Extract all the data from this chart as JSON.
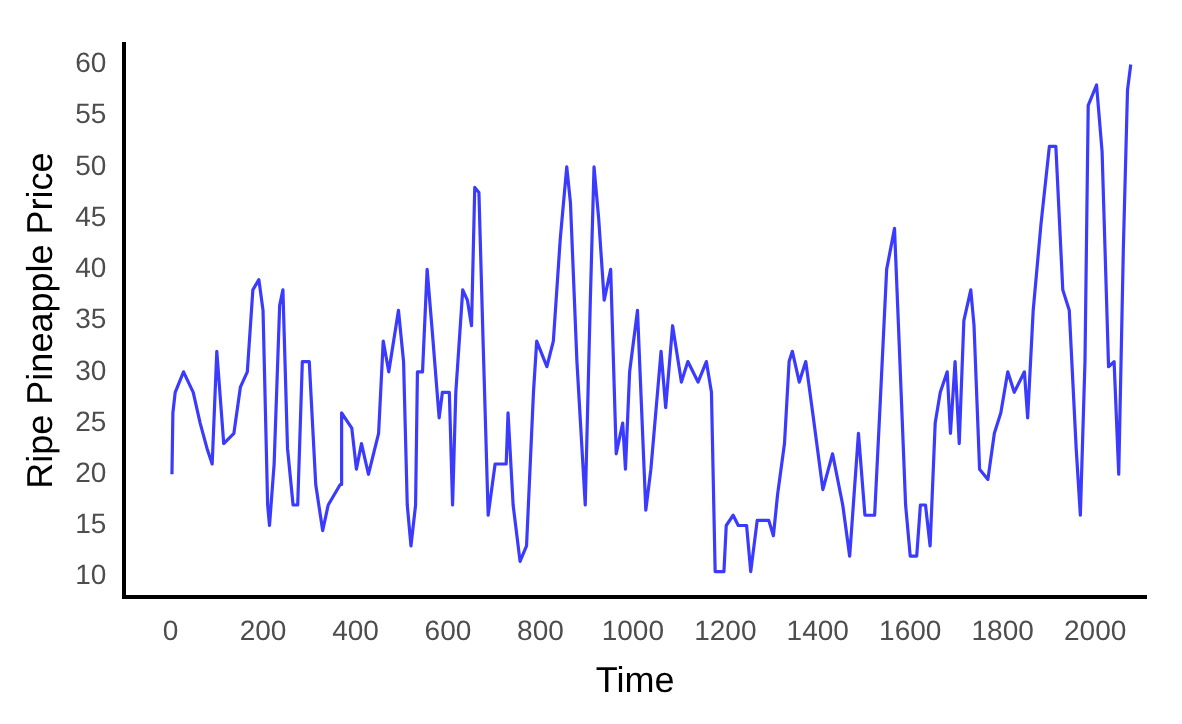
{
  "chart_data": {
    "type": "line",
    "xlabel": "Time",
    "ylabel": "Ripe Pineapple Price",
    "xlim": [
      -100,
      2110
    ],
    "ylim": [
      8,
      62
    ],
    "xticks": [
      0,
      200,
      400,
      600,
      800,
      1000,
      1200,
      1400,
      1600,
      1800,
      2000
    ],
    "yticks": [
      10,
      15,
      20,
      25,
      30,
      35,
      40,
      45,
      50,
      55,
      60
    ],
    "grid": false,
    "legend": false,
    "marker": "none",
    "line_style": "solid",
    "series": [
      {
        "color": "#3b3bff",
        "x": [
          3,
          5,
          10,
          28,
          49,
          64,
          79,
          90,
          100,
          115,
          137,
          151,
          166,
          178,
          191,
          200,
          210,
          214,
          224,
          236,
          243,
          253,
          265,
          275,
          285,
          300,
          314,
          329,
          341,
          367,
          370,
          392,
          402,
          413,
          428,
          450,
          460,
          472,
          493,
          504,
          512,
          520,
          530,
          534,
          545,
          555,
          566,
          581,
          588,
          603,
          610,
          617,
          632,
          642,
          651,
          658,
          667,
          676,
          687,
          702,
          726,
          730,
          741,
          756,
          770,
          785,
          792,
          814,
          828,
          843,
          857,
          865,
          879,
          897,
          908,
          916,
          926,
          938,
          952,
          964,
          978,
          984,
          993,
          1010,
          1028,
          1039,
          1061,
          1071,
          1086,
          1105,
          1119,
          1141,
          1159,
          1170,
          1178,
          1197,
          1202,
          1217,
          1228,
          1246,
          1255,
          1269,
          1294,
          1304,
          1313,
          1328,
          1338,
          1345,
          1360,
          1374,
          1389,
          1411,
          1432,
          1454,
          1469,
          1488,
          1502,
          1523,
          1534,
          1549,
          1566,
          1575,
          1590,
          1600,
          1614,
          1622,
          1633,
          1643,
          1654,
          1665,
          1680,
          1687,
          1697,
          1706,
          1716,
          1731,
          1738,
          1750,
          1768,
          1782,
          1796,
          1811,
          1825,
          1847,
          1854,
          1866,
          1883,
          1901,
          1915,
          1930,
          1944,
          1959,
          1968,
          1978,
          1985,
          2003,
          2015,
          2029,
          2041,
          2051,
          2061,
          2070,
          2077
        ],
        "values": [
          20,
          26,
          28,
          30,
          28,
          25,
          22.5,
          21,
          32,
          23,
          24,
          28.5,
          30,
          38,
          39,
          36,
          17,
          15,
          21,
          36.5,
          38,
          22.5,
          17,
          17,
          31,
          31,
          19,
          14.5,
          17,
          19,
          26,
          24.5,
          20.5,
          23,
          20,
          24,
          33,
          30,
          36,
          31,
          17,
          13,
          17,
          30,
          30,
          40,
          34,
          25.5,
          28,
          28,
          17,
          28,
          38,
          37,
          34.5,
          48,
          47.5,
          33,
          16,
          21,
          21,
          26,
          17,
          11.5,
          13,
          28,
          33,
          30.5,
          33,
          43,
          50,
          46.5,
          31,
          17,
          37,
          50,
          45,
          37,
          40,
          22,
          25,
          20.5,
          30,
          36,
          16.5,
          20.5,
          32,
          26.5,
          34.5,
          29,
          31,
          29,
          31,
          28,
          10.5,
          10.5,
          15,
          16,
          15,
          15,
          10.5,
          15.5,
          15.5,
          14,
          18,
          23,
          31,
          32,
          29,
          31,
          26,
          18.5,
          22,
          17,
          12,
          24,
          16,
          16,
          26,
          40,
          44,
          34,
          17,
          12,
          12,
          17,
          17,
          13,
          25,
          28,
          30,
          24,
          31,
          23,
          35,
          38,
          34.5,
          20.5,
          19.5,
          24,
          26,
          30,
          28,
          30,
          25.5,
          36,
          44.5,
          52,
          52,
          38,
          36,
          22.5,
          16,
          31,
          56,
          58,
          51.5,
          30.5,
          31,
          20,
          42,
          57.5,
          60
        ]
      }
    ]
  }
}
